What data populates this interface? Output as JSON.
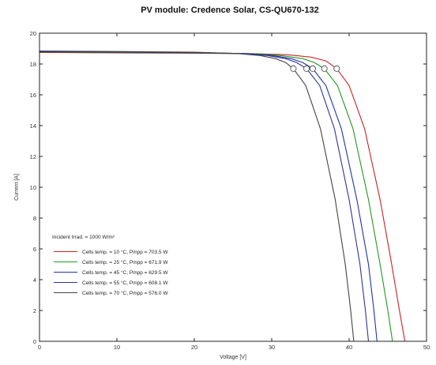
{
  "chart_data": {
    "type": "line",
    "title": "PV module:  Credence Solar,  CS-QU670-132",
    "xlabel": "Voltage [V]",
    "ylabel": "Current [A]",
    "xlim": [
      0,
      50
    ],
    "ylim": [
      0,
      20
    ],
    "xticks": [
      0,
      10,
      20,
      30,
      40,
      50
    ],
    "yticks": [
      0,
      2,
      4,
      6,
      8,
      10,
      12,
      14,
      16,
      18,
      20
    ],
    "grid": false,
    "legend_title": "Incident Irrad. = 1000 W/m²",
    "legend_position": "lower-left",
    "series": [
      {
        "name": "Cells temp. = 10 °C,  Pmpp = 703.5 W",
        "color": "#cc2222",
        "x": [
          0,
          10,
          20,
          28,
          32,
          35,
          37,
          38.4,
          40,
          42,
          44,
          45.5,
          46.5,
          47.2
        ],
        "y": [
          18.75,
          18.72,
          18.7,
          18.66,
          18.6,
          18.45,
          18.2,
          17.7,
          16.6,
          13.8,
          9.2,
          5.0,
          2.0,
          0
        ]
      },
      {
        "name": "Cells temp. = 25 °C,  Pmpp = 671.9 W",
        "color": "#229922",
        "x": [
          0,
          10,
          20,
          28,
          31,
          34,
          35.5,
          36.8,
          38.5,
          40.5,
          42.5,
          44,
          45,
          45.6
        ],
        "y": [
          18.78,
          18.75,
          18.72,
          18.66,
          18.56,
          18.35,
          18.1,
          17.7,
          16.6,
          13.8,
          9.2,
          5.0,
          2.0,
          0
        ]
      },
      {
        "name": "Cells temp. = 45 °C,  Pmpp = 629.5 W",
        "color": "#2233aa",
        "x": [
          0,
          10,
          20,
          27,
          30,
          32.5,
          34,
          35.3,
          37,
          39,
          41,
          42.5,
          43.2,
          43.6
        ],
        "y": [
          18.8,
          18.77,
          18.74,
          18.67,
          18.56,
          18.35,
          18.1,
          17.7,
          16.6,
          13.8,
          9.2,
          5.0,
          2.0,
          0
        ]
      },
      {
        "name": "Cells temp. = 55 °C,  Pmpp = 608.1 W",
        "color": "#333399",
        "x": [
          0,
          10,
          20,
          26.5,
          29.5,
          31.8,
          33.2,
          34.5,
          36.2,
          38.1,
          40,
          41.4,
          42.1,
          42.5
        ],
        "y": [
          18.82,
          18.79,
          18.75,
          18.67,
          18.55,
          18.35,
          18.1,
          17.7,
          16.6,
          13.8,
          9.2,
          5.0,
          2.0,
          0
        ]
      },
      {
        "name": "Cells temp. = 70 °C,  Pmpp = 576.0 W",
        "color": "#444444",
        "x": [
          0,
          10,
          20,
          25.5,
          28.5,
          30.5,
          31.8,
          32.8,
          34.4,
          36.3,
          38.2,
          39.5,
          40.2,
          40.6
        ],
        "y": [
          18.84,
          18.81,
          18.77,
          18.68,
          18.55,
          18.35,
          18.1,
          17.7,
          16.6,
          13.8,
          9.2,
          5.0,
          2.0,
          0
        ]
      }
    ],
    "mpp_points": [
      {
        "x": 38.4,
        "y": 17.7
      },
      {
        "x": 36.8,
        "y": 17.7
      },
      {
        "x": 35.3,
        "y": 17.7
      },
      {
        "x": 34.5,
        "y": 17.7
      },
      {
        "x": 32.8,
        "y": 17.7
      }
    ]
  }
}
